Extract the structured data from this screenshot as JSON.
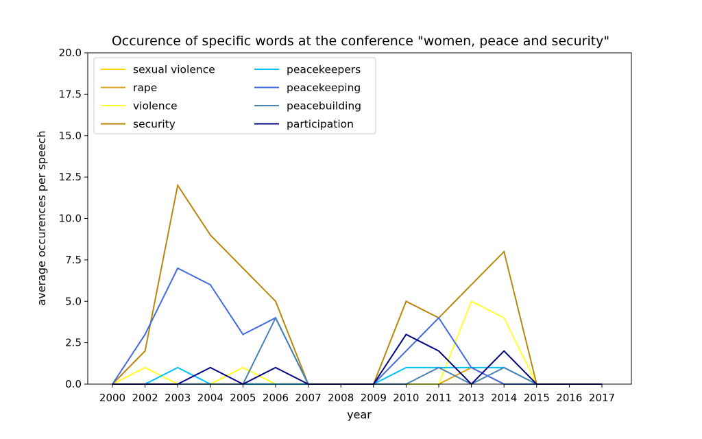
{
  "chart_data": {
    "type": "line",
    "title": "Occurence of specific words at the conference \"women, peace and security\"",
    "xlabel": "year",
    "ylabel": "average occurences per speech",
    "ylim": [
      0,
      20
    ],
    "yticks": [
      "0.0",
      "2.5",
      "5.0",
      "7.5",
      "10.0",
      "12.5",
      "15.0",
      "17.5",
      "20.0"
    ],
    "categories": [
      "2000",
      "2002",
      "2003",
      "2004",
      "2005",
      "2006",
      "2007",
      "2008",
      "2009",
      "2010",
      "2011",
      "2013",
      "2014",
      "2015",
      "2016",
      "2017"
    ],
    "grid": false,
    "legend_position": "top-left",
    "series": [
      {
        "name": "sexual violence",
        "color": "#FFD700",
        "values": [
          0,
          1,
          0,
          0,
          1,
          0,
          0,
          0,
          0,
          0,
          0,
          1,
          0,
          0,
          0,
          0
        ]
      },
      {
        "name": "rape",
        "color": "#DAA520",
        "values": [
          0,
          0,
          0,
          0,
          0,
          0,
          0,
          0,
          0,
          0,
          0,
          1,
          0,
          0,
          0,
          0
        ]
      },
      {
        "name": "violence",
        "color": "#FFFF33",
        "values": [
          0,
          1,
          0,
          0,
          1,
          0,
          0,
          0,
          0,
          0,
          0,
          5,
          4,
          0,
          0,
          0
        ]
      },
      {
        "name": "security",
        "color": "#B8860B",
        "values": [
          0,
          2,
          12,
          9,
          7,
          5,
          0,
          0,
          0,
          5,
          4,
          6,
          8,
          0,
          0,
          0
        ]
      },
      {
        "name": "peacekeepers",
        "color": "#00BFFF",
        "values": [
          0,
          0,
          1,
          0,
          0,
          0,
          0,
          0,
          0,
          1,
          1,
          1,
          1,
          0,
          0,
          0
        ]
      },
      {
        "name": "peacekeeping",
        "color": "#4169E1",
        "values": [
          0,
          3,
          7,
          6,
          3,
          4,
          0,
          0,
          0,
          2,
          4,
          1,
          0,
          0,
          0,
          0
        ]
      },
      {
        "name": "peacebuilding",
        "color": "#4682B4",
        "values": [
          0,
          0,
          0,
          0,
          0,
          4,
          0,
          0,
          0,
          0,
          1,
          0,
          1,
          0,
          0,
          0
        ]
      },
      {
        "name": "participation",
        "color": "#000080",
        "values": [
          0,
          0,
          0,
          1,
          0,
          1,
          0,
          0,
          0,
          3,
          2,
          0,
          2,
          0,
          0,
          0
        ]
      }
    ]
  }
}
